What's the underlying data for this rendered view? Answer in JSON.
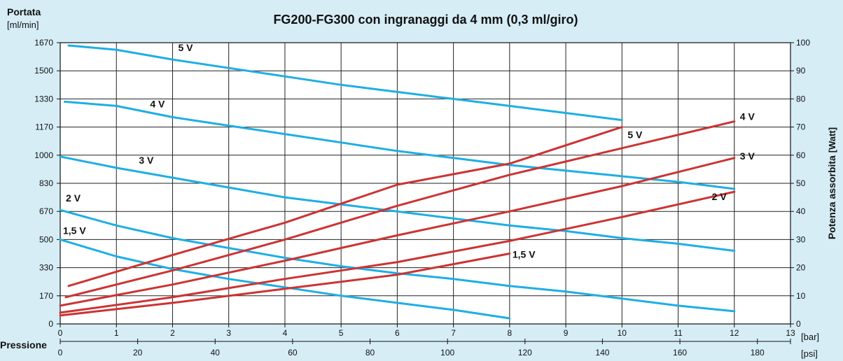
{
  "chart_data": {
    "type": "line",
    "title": "FG200-FG300 con ingranaggi da 4 mm (0,3 ml/giro)",
    "y_left": {
      "title": "Portata",
      "unit": "[ml/min]",
      "ticks": [
        "0",
        "170",
        "330",
        "500",
        "670",
        "830",
        "1000",
        "1170",
        "1330",
        "1500",
        "1670"
      ],
      "range": [
        0,
        10
      ]
    },
    "y_right": {
      "title": "Potenza assorbita",
      "unit": "[Watt]",
      "ticks": [
        "0",
        "10",
        "20",
        "30",
        "40",
        "50",
        "60",
        "70",
        "80",
        "90",
        "100"
      ],
      "range": [
        0,
        100
      ]
    },
    "x_bar": {
      "title": "Pressione",
      "unit": "[bar]",
      "ticks": [
        "0",
        "1",
        "2",
        "3",
        "4",
        "5",
        "6",
        "7",
        "8",
        "9",
        "10",
        "11",
        "12",
        "13"
      ],
      "range": [
        0,
        13
      ]
    },
    "x_psi": {
      "unit": "[psi]",
      "ticks": [
        "0",
        "20",
        "40",
        "60",
        "80",
        "100",
        "120",
        "140",
        "160",
        "180"
      ],
      "values": [
        0,
        20,
        40,
        60,
        80,
        100,
        120,
        140,
        160,
        180
      ]
    },
    "grid": true,
    "flow_series": [
      {
        "name": "5 V",
        "color": "#1eaee4",
        "label_at": [
          2.1,
          9.7
        ],
        "points": [
          [
            0.15,
            9.9
          ],
          [
            1,
            9.75
          ],
          [
            2,
            9.4
          ],
          [
            3,
            9.1
          ],
          [
            4,
            8.8
          ],
          [
            5,
            8.5
          ],
          [
            6,
            8.25
          ],
          [
            7,
            8.0
          ],
          [
            8,
            7.75
          ],
          [
            9,
            7.5
          ],
          [
            10,
            7.25
          ]
        ]
      },
      {
        "name": "4 V",
        "color": "#1eaee4",
        "label_at": [
          1.6,
          7.7
        ],
        "points": [
          [
            0.08,
            7.9
          ],
          [
            1,
            7.75
          ],
          [
            2,
            7.35
          ],
          [
            3,
            7.05
          ],
          [
            4,
            6.75
          ],
          [
            5,
            6.45
          ],
          [
            6,
            6.15
          ],
          [
            7,
            5.9
          ],
          [
            8,
            5.65
          ],
          [
            9,
            5.45
          ],
          [
            10,
            5.25
          ],
          [
            11,
            5.05
          ],
          [
            12,
            4.8
          ]
        ]
      },
      {
        "name": "3 V",
        "color": "#1eaee4",
        "label_at": [
          1.4,
          5.7
        ],
        "points": [
          [
            0,
            5.95
          ],
          [
            1,
            5.55
          ],
          [
            2,
            5.2
          ],
          [
            3,
            4.85
          ],
          [
            4,
            4.5
          ],
          [
            5,
            4.25
          ],
          [
            6,
            4.0
          ],
          [
            7,
            3.75
          ],
          [
            8,
            3.5
          ],
          [
            9,
            3.3
          ],
          [
            10,
            3.05
          ],
          [
            11,
            2.85
          ],
          [
            12,
            2.6
          ]
        ]
      },
      {
        "name": "2 V",
        "color": "#1eaee4",
        "label_at": [
          0.1,
          4.35
        ],
        "points": [
          [
            0,
            4.05
          ],
          [
            1,
            3.5
          ],
          [
            2,
            3.05
          ],
          [
            3,
            2.7
          ],
          [
            4,
            2.35
          ],
          [
            5,
            2.05
          ],
          [
            6,
            1.8
          ],
          [
            7,
            1.6
          ],
          [
            8,
            1.35
          ],
          [
            9,
            1.15
          ],
          [
            10,
            0.9
          ],
          [
            11,
            0.65
          ],
          [
            12,
            0.45
          ]
        ]
      },
      {
        "name": "1,5 V",
        "color": "#1eaee4",
        "label_at": [
          0.05,
          3.2
        ],
        "points": [
          [
            0,
            3.0
          ],
          [
            1,
            2.4
          ],
          [
            2,
            1.95
          ],
          [
            3,
            1.6
          ],
          [
            4,
            1.3
          ],
          [
            5,
            1.0
          ],
          [
            6,
            0.75
          ],
          [
            7,
            0.5
          ],
          [
            8,
            0.2
          ]
        ]
      }
    ],
    "power_series": [
      {
        "name": "5 V",
        "color": "#cc3333",
        "label_at": [
          10.1,
          6.6
        ],
        "points": [
          [
            0.15,
            1.35
          ],
          [
            2,
            2.45
          ],
          [
            4,
            3.6
          ],
          [
            6,
            4.95
          ],
          [
            8,
            5.7
          ],
          [
            10,
            7.0
          ]
        ]
      },
      {
        "name": "4 V",
        "color": "#cc3333",
        "label_at": [
          12.1,
          7.25
        ],
        "points": [
          [
            0.1,
            0.95
          ],
          [
            2,
            1.9
          ],
          [
            4,
            3.0
          ],
          [
            6,
            4.2
          ],
          [
            8,
            5.3
          ],
          [
            10,
            6.25
          ],
          [
            12,
            7.2
          ]
        ]
      },
      {
        "name": "3 V",
        "color": "#cc3333",
        "label_at": [
          12.1,
          5.85
        ],
        "points": [
          [
            0,
            0.65
          ],
          [
            2,
            1.4
          ],
          [
            4,
            2.25
          ],
          [
            6,
            3.15
          ],
          [
            8,
            4.0
          ],
          [
            10,
            4.9
          ],
          [
            12,
            5.9
          ]
        ]
      },
      {
        "name": "2 V",
        "color": "#cc3333",
        "label_at": [
          11.6,
          4.4
        ],
        "points": [
          [
            0,
            0.4
          ],
          [
            2,
            0.95
          ],
          [
            4,
            1.6
          ],
          [
            6,
            2.2
          ],
          [
            8,
            2.95
          ],
          [
            10,
            3.8
          ],
          [
            12,
            4.7
          ]
        ]
      },
      {
        "name": "1,5 V",
        "color": "#cc3333",
        "label_at": [
          8.05,
          2.35
        ],
        "points": [
          [
            0,
            0.3
          ],
          [
            2,
            0.75
          ],
          [
            4,
            1.25
          ],
          [
            6,
            1.75
          ],
          [
            8,
            2.5
          ]
        ]
      }
    ]
  }
}
